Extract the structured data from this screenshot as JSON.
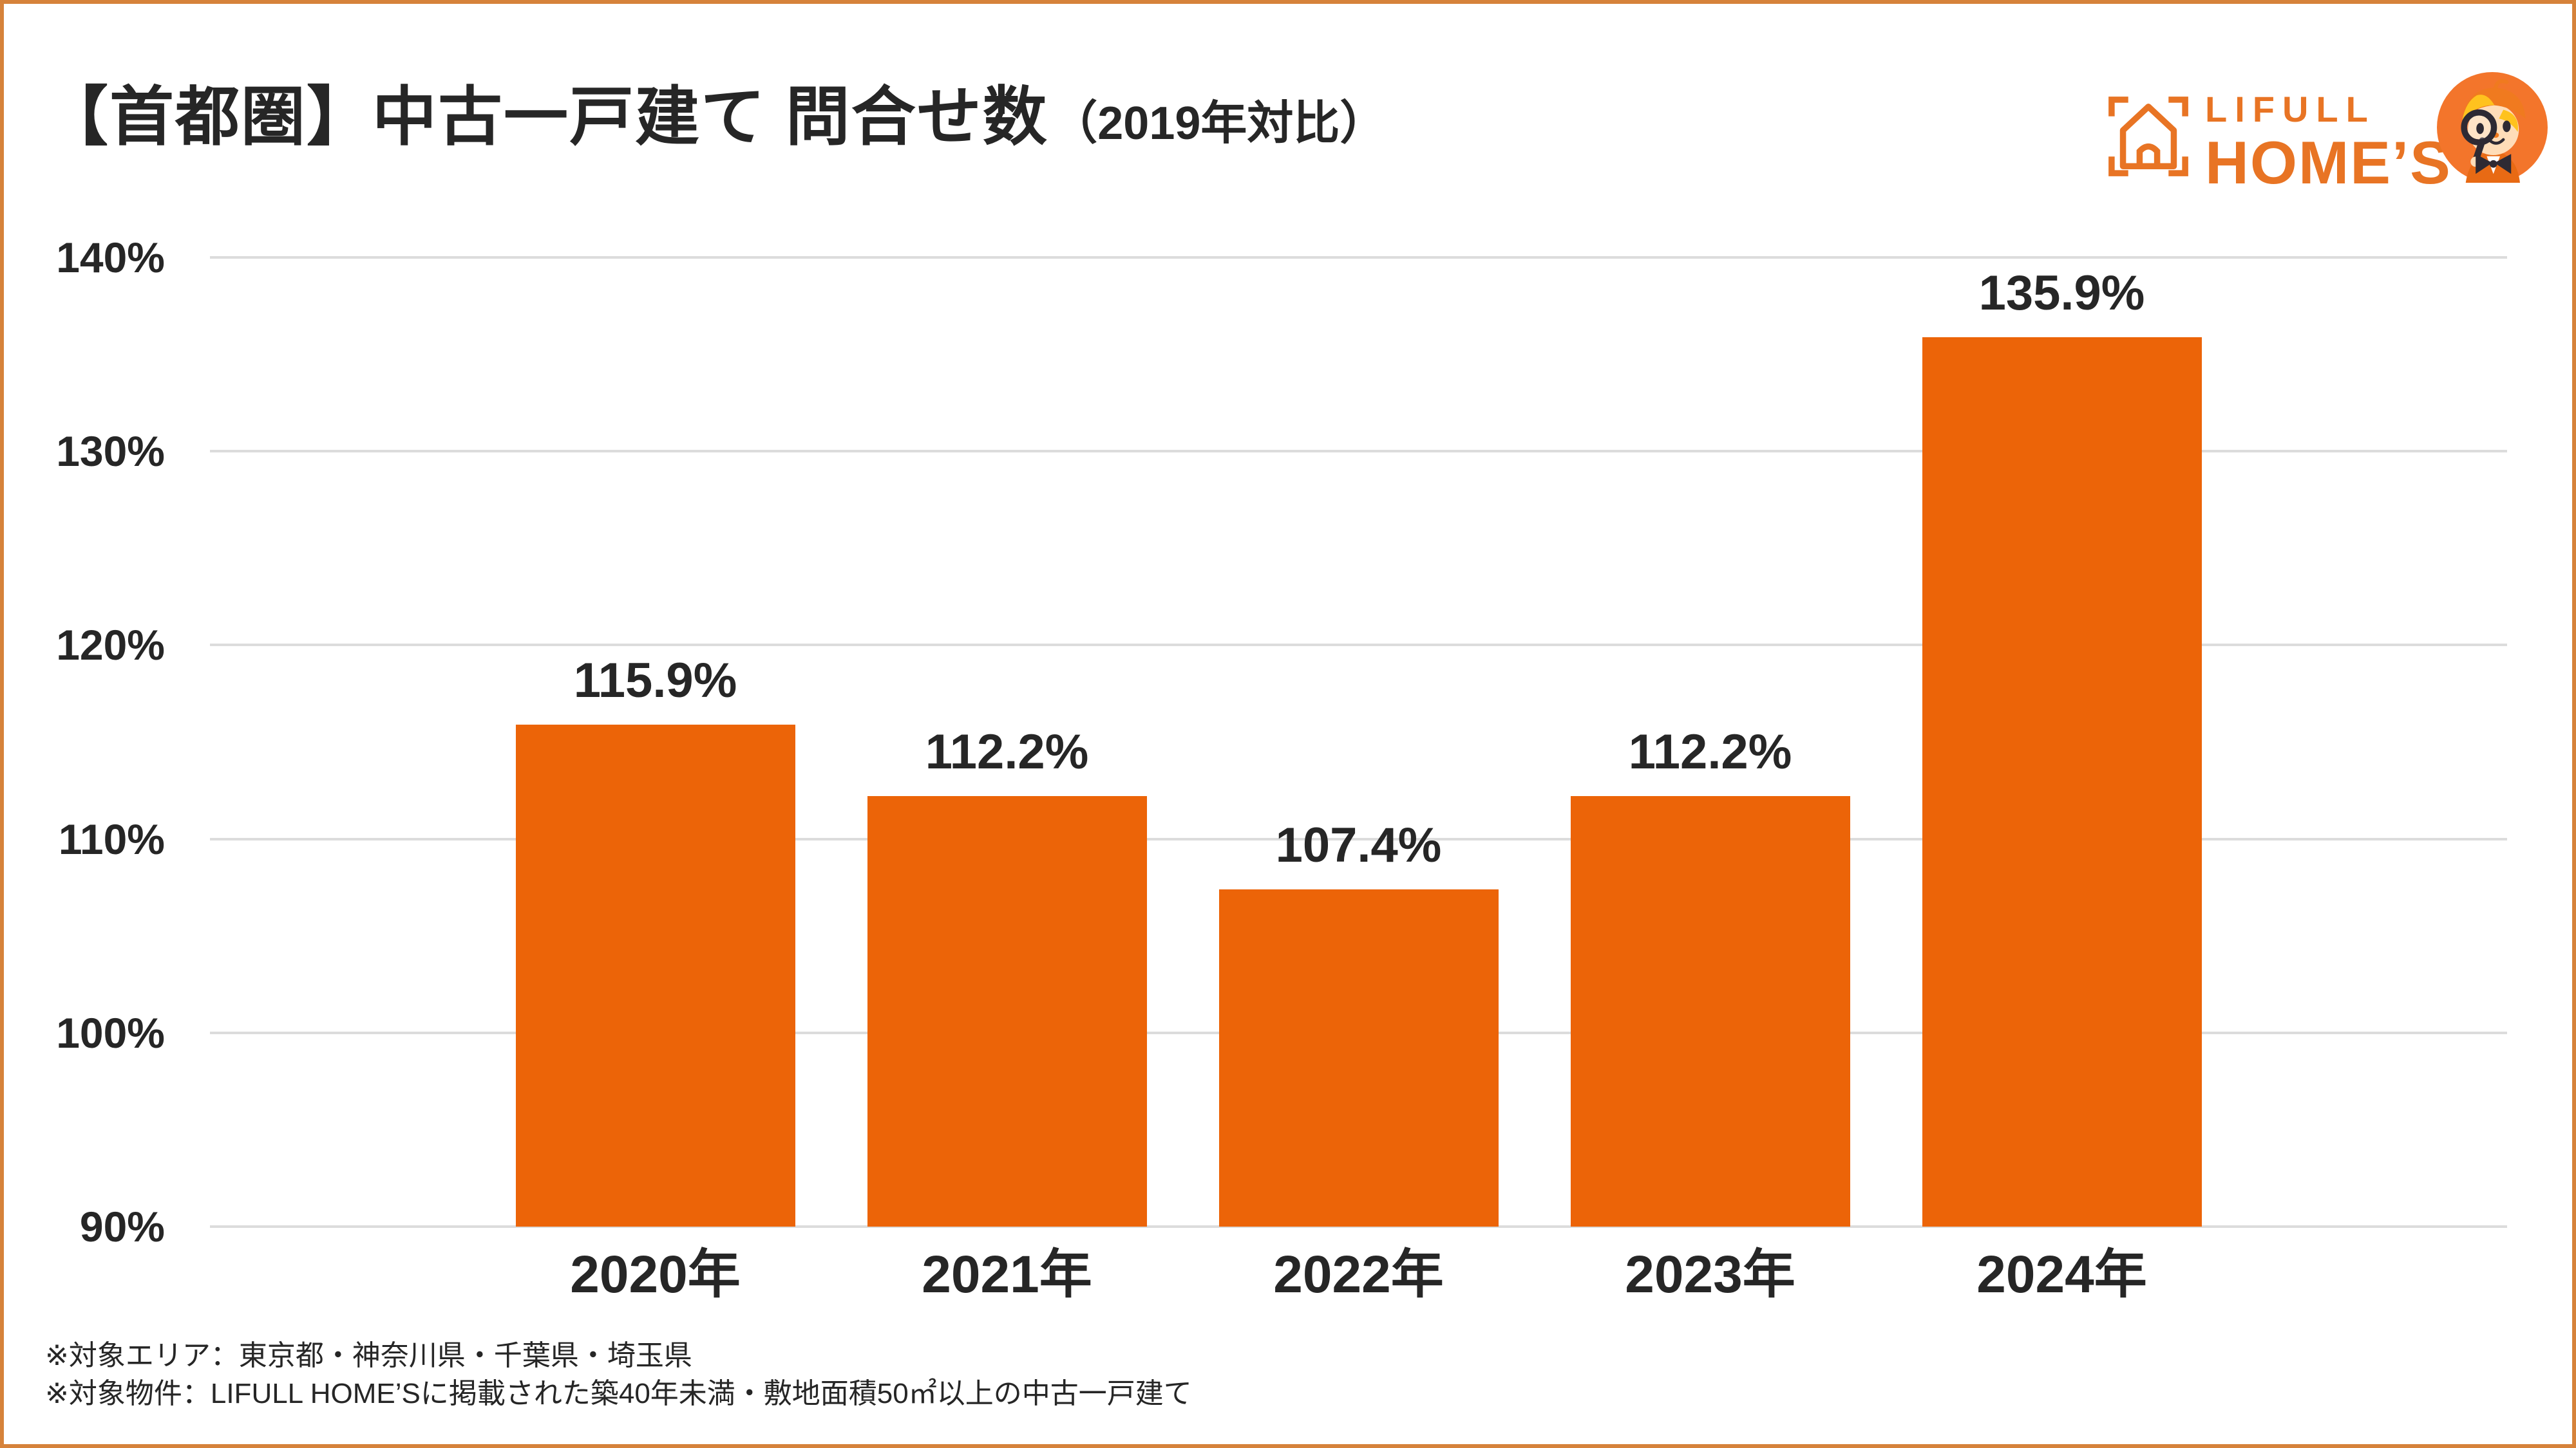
{
  "header": {
    "title_main": "【首都圏】中古一戸建て 問合せ数",
    "title_note": "（2019年対比）",
    "logo": {
      "line1": "LIFULL",
      "line2": "HOME’S",
      "icon_name": "homes-frame-house-icon",
      "mascot_name": "homes-kun-mascot"
    }
  },
  "chart_data": {
    "type": "bar",
    "title": "【首都圏】中古一戸建て 問合せ数（2019年対比）",
    "categories": [
      "2020年",
      "2021年",
      "2022年",
      "2023年",
      "2024年"
    ],
    "values": [
      115.9,
      112.2,
      107.4,
      112.2,
      135.9
    ],
    "value_labels": [
      "115.9%",
      "112.2%",
      "107.4%",
      "112.2%",
      "135.9%"
    ],
    "xlabel": "",
    "ylabel": "",
    "ylim": [
      90,
      140
    ],
    "yticks": [
      140,
      130,
      120,
      110,
      100,
      90
    ],
    "ytick_labels": [
      "140%",
      "130%",
      "120%",
      "110%",
      "100%",
      "90%"
    ],
    "grid": true,
    "legend": false,
    "bar_color": "#EC6408"
  },
  "footnotes": [
    "※対象エリア：東京都・神奈川県・千葉県・埼玉県",
    "※対象物件：LIFULL HOME’Sに掲載された築40年未満・敷地面積50㎡以上の中古一戸建て"
  ],
  "colors": {
    "bar": "#EC6408",
    "logo_orange": "#E87424",
    "mascot_circle": "#F3752B",
    "border": "#D6823A",
    "gridline": "#DCDCDC",
    "text": "#262626"
  }
}
